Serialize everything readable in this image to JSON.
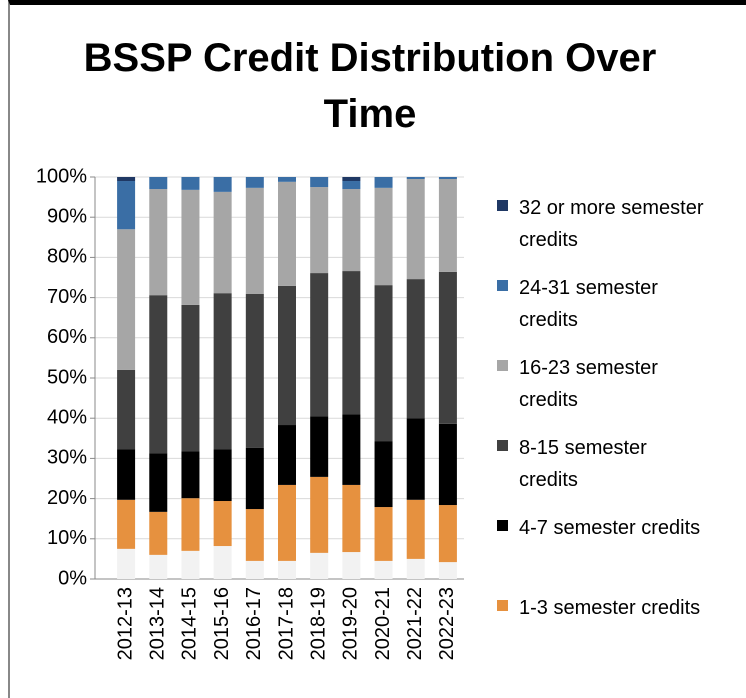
{
  "chart_data": {
    "type": "stacked_bar",
    "title": "BSSP Credit Distribution Over Time",
    "categories": [
      "2012-13",
      "2013-14",
      "2014-15",
      "2015-16",
      "2016-17",
      "2017-18",
      "2018-19",
      "2019-20",
      "2020-21",
      "2021-22",
      "2022-23"
    ],
    "series": [
      {
        "name": null,
        "color": "#f2f2f2",
        "values": [
          7.5,
          6,
          7,
          8.2,
          4.5,
          4.5,
          6.5,
          6.7,
          4.5,
          5,
          4.2
        ]
      },
      {
        "name": "1-3 semester credits",
        "color": "#e6913f",
        "values": [
          12.2,
          10.7,
          13.1,
          11.2,
          12.9,
          18.9,
          18.9,
          16.7,
          13.4,
          14.7,
          14.2
        ]
      },
      {
        "name": "4-7 semester credits",
        "color": "#000000",
        "values": [
          12.6,
          14.6,
          11.7,
          12.9,
          15.2,
          14.9,
          15.1,
          17.6,
          16.4,
          20.3,
          20.2
        ]
      },
      {
        "name": "8-15 semester credits",
        "color": "#404040",
        "values": [
          19.7,
          39.3,
          36.4,
          38.8,
          38.3,
          34.6,
          35.6,
          35.6,
          38.8,
          34.6,
          37.8
        ]
      },
      {
        "name": "16-23 semester credits",
        "color": "#a6a6a6",
        "values": [
          35,
          26.4,
          28.6,
          25.2,
          26.4,
          25.9,
          21.4,
          20.4,
          24.2,
          24.9,
          23.1
        ]
      },
      {
        "name": "24-31 semester credits",
        "color": "#3a6ea5",
        "values": [
          12,
          3,
          3.2,
          3.7,
          2.7,
          1.2,
          2.5,
          2,
          2.7,
          0.5,
          0.5
        ]
      },
      {
        "name": "32 or more semester credits",
        "color": "#1f3864",
        "values": [
          1,
          0,
          0,
          0,
          0,
          0,
          0,
          1,
          0,
          0,
          0
        ]
      }
    ],
    "ylim": [
      0,
      100
    ],
    "yticks": [
      {
        "value": 0,
        "label": "0%"
      },
      {
        "value": 10,
        "label": "10%"
      },
      {
        "value": 20,
        "label": "20%"
      },
      {
        "value": 30,
        "label": "30%"
      },
      {
        "value": 40,
        "label": "40%"
      },
      {
        "value": 50,
        "label": "50%"
      },
      {
        "value": 60,
        "label": "60%"
      },
      {
        "value": 70,
        "label": "70%"
      },
      {
        "value": 80,
        "label": "80%"
      },
      {
        "value": 90,
        "label": "90%"
      },
      {
        "value": 100,
        "label": "100%"
      }
    ],
    "grid": true
  }
}
